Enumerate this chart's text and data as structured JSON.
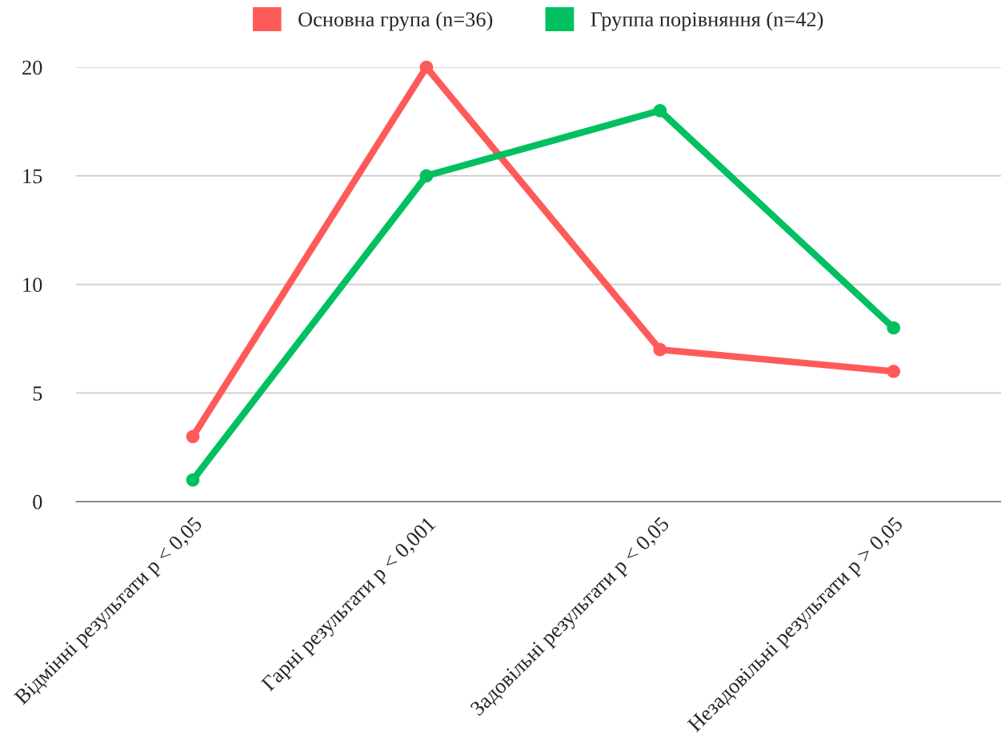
{
  "chart_data": {
    "type": "line",
    "categories": [
      "Відмінні результати p < 0,05",
      "Гарні результати p < 0,001",
      "Задовільні результати p < 0,05",
      "Незадовільні результати p > 0,05"
    ],
    "series": [
      {
        "name": "Основна група (n=36)",
        "color": "#ff5a5a",
        "values": [
          3,
          20,
          7,
          6
        ]
      },
      {
        "name": "Группа порівняння (n=42)",
        "color": "#00c060",
        "values": [
          1,
          15,
          18,
          8
        ]
      }
    ],
    "ylim": [
      0,
      20
    ],
    "yticks": [
      0,
      5,
      10,
      15,
      20
    ],
    "grid": "y",
    "legend": "top",
    "marker": "circle",
    "line_style": "solid"
  }
}
